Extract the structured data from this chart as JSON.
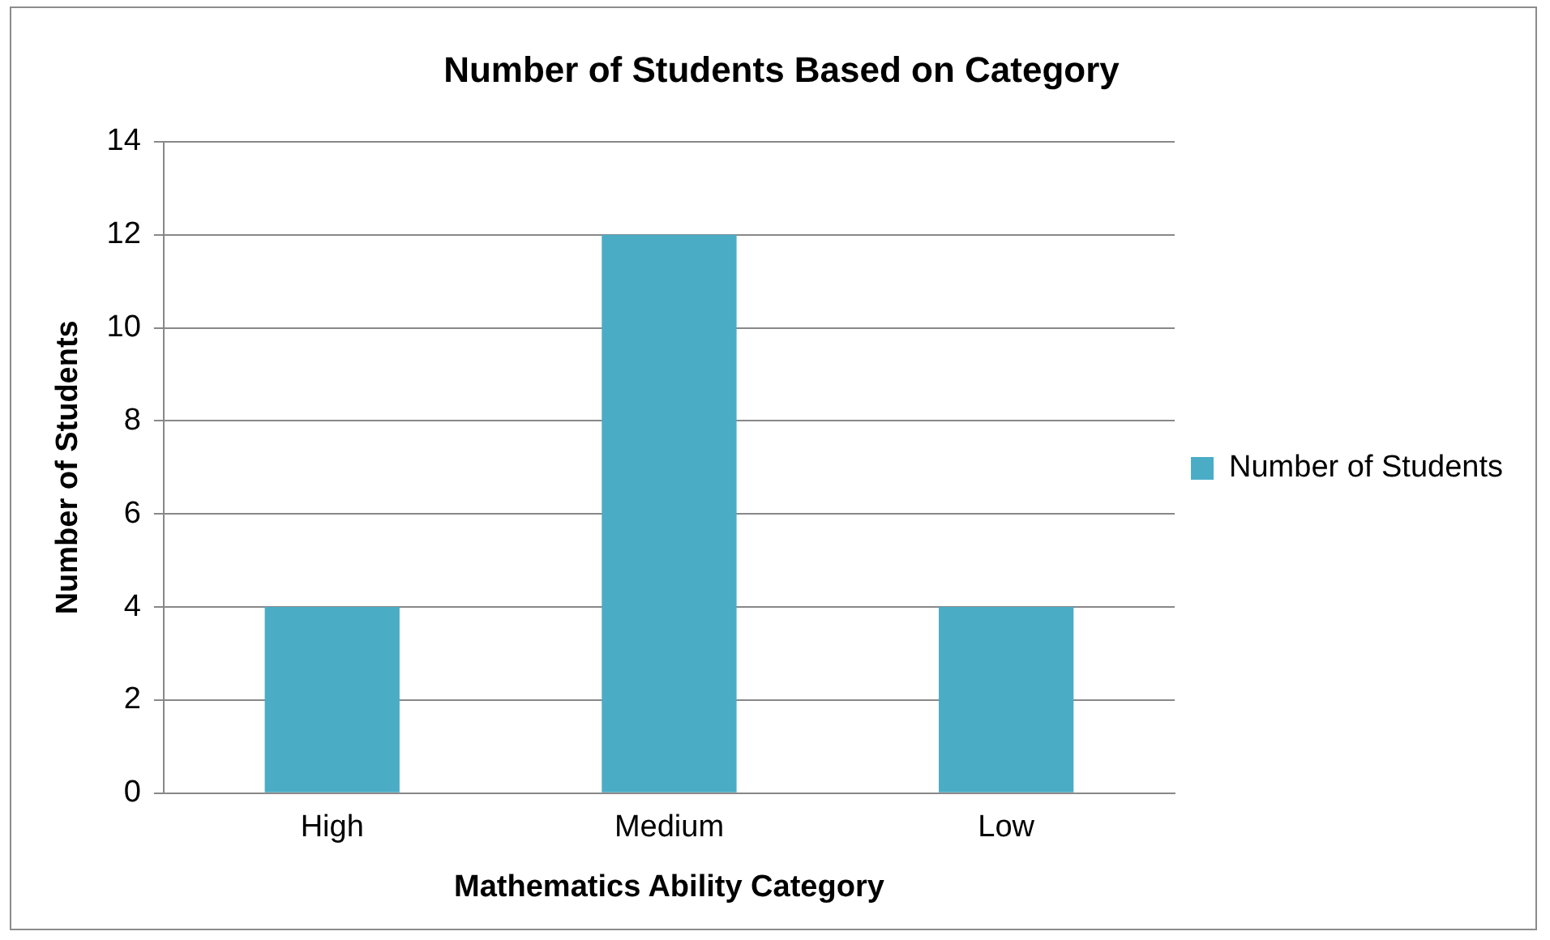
{
  "chart_data": {
    "type": "bar",
    "title": "Number of Students Based on Category",
    "xlabel": "Mathematics Ability Category",
    "ylabel": "Number of Students",
    "categories": [
      "High",
      "Medium",
      "Low"
    ],
    "series": [
      {
        "name": "Number of Students",
        "color": "#4bacc6",
        "values": [
          4,
          12,
          4
        ]
      }
    ],
    "ylim": [
      0,
      14
    ],
    "yticks": [
      0,
      2,
      4,
      6,
      8,
      10,
      12,
      14
    ],
    "grid": "y",
    "legend": "right"
  }
}
